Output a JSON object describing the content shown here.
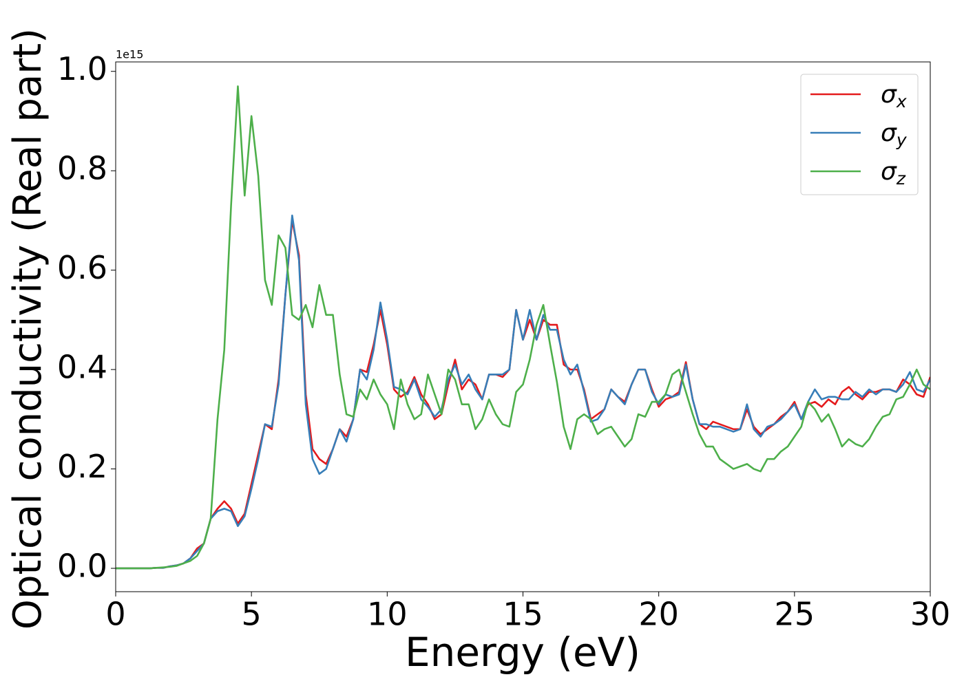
{
  "chart_data": {
    "type": "line",
    "y_offset_label": "1e15",
    "xlabel": "Energy (eV)",
    "ylabel": "Optical conductivity (Real part)",
    "x": [
      0,
      0.25,
      0.5,
      0.75,
      1,
      1.25,
      1.5,
      1.75,
      2,
      2.25,
      2.5,
      2.75,
      3,
      3.25,
      3.5,
      3.75,
      4,
      4.25,
      4.5,
      4.75,
      5,
      5.25,
      5.5,
      5.75,
      6,
      6.25,
      6.5,
      6.75,
      7,
      7.25,
      7.5,
      7.75,
      8,
      8.25,
      8.5,
      8.75,
      9,
      9.25,
      9.5,
      9.75,
      10,
      10.25,
      10.5,
      10.75,
      11,
      11.25,
      11.5,
      11.75,
      12,
      12.25,
      12.5,
      12.75,
      13,
      13.25,
      13.5,
      13.75,
      14,
      14.25,
      14.5,
      14.75,
      15,
      15.25,
      15.5,
      15.75,
      16,
      16.25,
      16.5,
      16.75,
      17,
      17.25,
      17.5,
      17.75,
      18,
      18.25,
      18.5,
      18.75,
      19,
      19.25,
      19.5,
      19.75,
      20,
      20.25,
      20.5,
      20.75,
      21,
      21.25,
      21.5,
      21.75,
      22,
      22.25,
      22.5,
      22.75,
      23,
      23.25,
      23.5,
      23.75,
      24,
      24.25,
      24.5,
      24.75,
      25,
      25.25,
      25.5,
      25.75,
      26,
      26.25,
      26.5,
      26.75,
      27,
      27.25,
      27.5,
      27.75,
      28,
      28.25,
      28.5,
      28.75,
      29,
      29.25,
      29.5,
      29.75,
      30
    ],
    "series": [
      {
        "name": "σx",
        "color": "#e41a1c",
        "values": [
          0,
          0,
          0,
          0,
          0,
          0,
          0.001,
          0.001,
          0.004,
          0.006,
          0.01,
          0.02,
          0.04,
          0.05,
          0.1,
          0.12,
          0.135,
          0.12,
          0.09,
          0.11,
          0.17,
          0.23,
          0.29,
          0.28,
          0.38,
          0.55,
          0.7,
          0.63,
          0.35,
          0.24,
          0.22,
          0.21,
          0.24,
          0.28,
          0.265,
          0.3,
          0.4,
          0.395,
          0.45,
          0.52,
          0.45,
          0.36,
          0.345,
          0.355,
          0.385,
          0.35,
          0.33,
          0.3,
          0.31,
          0.37,
          0.42,
          0.36,
          0.38,
          0.37,
          0.34,
          0.39,
          0.39,
          0.385,
          0.4,
          0.52,
          0.46,
          0.5,
          0.46,
          0.5,
          0.49,
          0.49,
          0.41,
          0.4,
          0.4,
          0.36,
          0.3,
          0.31,
          0.32,
          0.36,
          0.345,
          0.335,
          0.37,
          0.4,
          0.4,
          0.36,
          0.325,
          0.34,
          0.345,
          0.355,
          0.415,
          0.34,
          0.29,
          0.28,
          0.295,
          0.29,
          0.285,
          0.28,
          0.28,
          0.32,
          0.285,
          0.27,
          0.28,
          0.29,
          0.305,
          0.315,
          0.335,
          0.3,
          0.33,
          0.335,
          0.325,
          0.34,
          0.33,
          0.355,
          0.365,
          0.35,
          0.34,
          0.355,
          0.355,
          0.36,
          0.36,
          0.355,
          0.38,
          0.37,
          0.35,
          0.345,
          0.385
        ]
      },
      {
        "name": "σy",
        "color": "#377eb8",
        "values": [
          0,
          0,
          0,
          0,
          0,
          0,
          0.001,
          0.001,
          0.004,
          0.006,
          0.01,
          0.02,
          0.035,
          0.05,
          0.1,
          0.115,
          0.12,
          0.115,
          0.085,
          0.105,
          0.16,
          0.22,
          0.29,
          0.285,
          0.37,
          0.55,
          0.71,
          0.62,
          0.33,
          0.22,
          0.19,
          0.2,
          0.24,
          0.28,
          0.255,
          0.3,
          0.4,
          0.38,
          0.44,
          0.535,
          0.46,
          0.365,
          0.36,
          0.35,
          0.38,
          0.34,
          0.325,
          0.305,
          0.32,
          0.38,
          0.41,
          0.37,
          0.39,
          0.36,
          0.34,
          0.39,
          0.39,
          0.39,
          0.4,
          0.52,
          0.46,
          0.52,
          0.46,
          0.51,
          0.48,
          0.48,
          0.42,
          0.39,
          0.41,
          0.355,
          0.295,
          0.3,
          0.32,
          0.36,
          0.345,
          0.33,
          0.37,
          0.4,
          0.4,
          0.355,
          0.33,
          0.35,
          0.345,
          0.35,
          0.41,
          0.34,
          0.29,
          0.29,
          0.285,
          0.285,
          0.28,
          0.275,
          0.28,
          0.33,
          0.28,
          0.265,
          0.285,
          0.29,
          0.3,
          0.315,
          0.33,
          0.3,
          0.335,
          0.36,
          0.34,
          0.345,
          0.345,
          0.34,
          0.34,
          0.355,
          0.345,
          0.36,
          0.35,
          0.36,
          0.36,
          0.355,
          0.37,
          0.395,
          0.36,
          0.355,
          0.38
        ]
      },
      {
        "name": "σz",
        "color": "#4daf4a",
        "values": [
          0,
          0,
          0,
          0,
          0,
          0,
          0.001,
          0.002,
          0.003,
          0.005,
          0.01,
          0.015,
          0.025,
          0.05,
          0.1,
          0.3,
          0.44,
          0.73,
          0.97,
          0.75,
          0.91,
          0.79,
          0.58,
          0.53,
          0.67,
          0.645,
          0.51,
          0.5,
          0.53,
          0.485,
          0.57,
          0.51,
          0.51,
          0.39,
          0.31,
          0.305,
          0.36,
          0.34,
          0.38,
          0.35,
          0.33,
          0.28,
          0.38,
          0.33,
          0.3,
          0.31,
          0.39,
          0.35,
          0.31,
          0.4,
          0.38,
          0.33,
          0.33,
          0.28,
          0.3,
          0.34,
          0.31,
          0.29,
          0.285,
          0.355,
          0.37,
          0.42,
          0.49,
          0.53,
          0.45,
          0.375,
          0.285,
          0.24,
          0.3,
          0.31,
          0.3,
          0.27,
          0.28,
          0.285,
          0.265,
          0.245,
          0.26,
          0.31,
          0.305,
          0.335,
          0.335,
          0.35,
          0.39,
          0.4,
          0.355,
          0.31,
          0.27,
          0.245,
          0.245,
          0.22,
          0.21,
          0.2,
          0.205,
          0.21,
          0.2,
          0.195,
          0.22,
          0.22,
          0.235,
          0.245,
          0.265,
          0.285,
          0.335,
          0.32,
          0.295,
          0.31,
          0.28,
          0.245,
          0.26,
          0.25,
          0.245,
          0.26,
          0.285,
          0.305,
          0.31,
          0.34,
          0.345,
          0.37,
          0.4,
          0.37,
          0.36
        ]
      }
    ],
    "xlim": [
      0,
      30
    ],
    "ylim": [
      -0.047,
      1.019
    ],
    "xticks": [
      0,
      5,
      10,
      15,
      20,
      25,
      30
    ],
    "yticks": [
      {
        "value": 0,
        "label": "0.0"
      },
      0.2,
      0.4,
      0.6,
      0.8,
      {
        "value": 1,
        "label": "1.0"
      }
    ],
    "grid": false,
    "legend": "upper right"
  }
}
